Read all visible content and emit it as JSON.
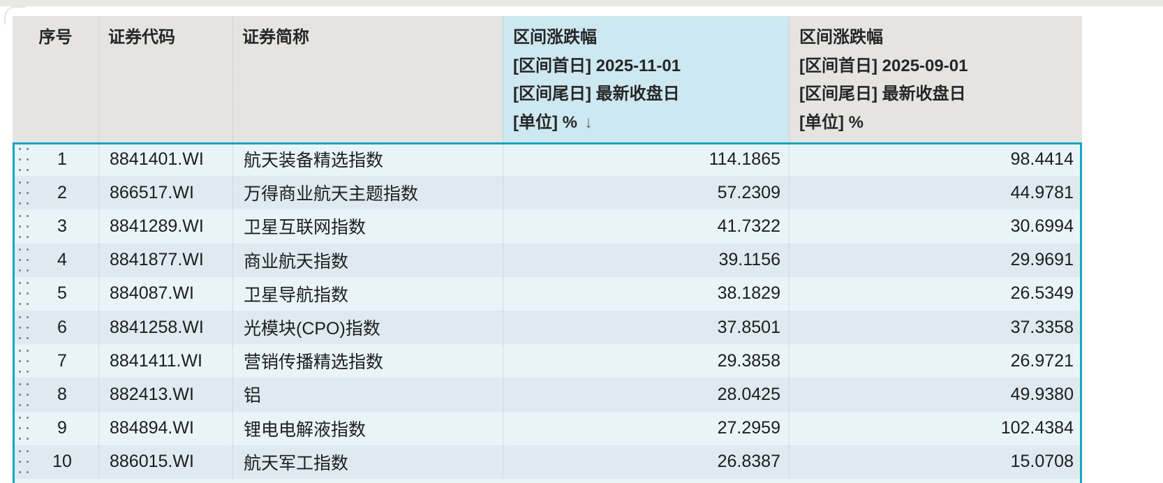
{
  "colors": {
    "selection_border": "#16a4bf",
    "header_bg": "#e5e4e2",
    "header_sorted_bg": "#cde8f1",
    "row_odd_bg": "#e9f4f8",
    "row_even_bg": "#deeaef",
    "top_strip_bg": "#e9e8e7",
    "text": "#1d1d1f"
  },
  "table": {
    "sort_arrow": "↓",
    "columns": [
      {
        "key": "seq",
        "label": "序号"
      },
      {
        "key": "code",
        "label": "证券代码"
      },
      {
        "key": "name",
        "label": "证券简称"
      },
      {
        "key": "r1",
        "label_lines": [
          "区间涨跌幅",
          "[区间首日] 2025-11-01",
          "[区间尾日] 最新收盘日",
          "[单位] %"
        ],
        "sorted": "desc"
      },
      {
        "key": "r2",
        "label_lines": [
          "区间涨跌幅",
          "[区间首日] 2025-09-01",
          "[区间尾日] 最新收盘日",
          "[单位] %"
        ]
      }
    ],
    "rows": [
      {
        "seq": "1",
        "code": "8841401.WI",
        "name": "航天装备精选指数",
        "r1": "114.1865",
        "r2": "98.4414"
      },
      {
        "seq": "2",
        "code": "866517.WI",
        "name": "万得商业航天主题指数",
        "r1": "57.2309",
        "r2": "44.9781"
      },
      {
        "seq": "3",
        "code": "8841289.WI",
        "name": "卫星互联网指数",
        "r1": "41.7322",
        "r2": "30.6994"
      },
      {
        "seq": "4",
        "code": "8841877.WI",
        "name": "商业航天指数",
        "r1": "39.1156",
        "r2": "29.9691"
      },
      {
        "seq": "5",
        "code": "884087.WI",
        "name": "卫星导航指数",
        "r1": "38.1829",
        "r2": "26.5349"
      },
      {
        "seq": "6",
        "code": "8841258.WI",
        "name": "光模块(CPO)指数",
        "r1": "37.8501",
        "r2": "37.3358"
      },
      {
        "seq": "7",
        "code": "8841411.WI",
        "name": "营销传播精选指数",
        "r1": "29.3858",
        "r2": "26.9721"
      },
      {
        "seq": "8",
        "code": "882413.WI",
        "name": "铝",
        "r1": "28.0425",
        "r2": "49.9380"
      },
      {
        "seq": "9",
        "code": "884894.WI",
        "name": "锂电电解液指数",
        "r1": "27.2959",
        "r2": "102.4384"
      },
      {
        "seq": "10",
        "code": "886015.WI",
        "name": "航天军工指数",
        "r1": "26.8387",
        "r2": "15.0708"
      }
    ]
  }
}
